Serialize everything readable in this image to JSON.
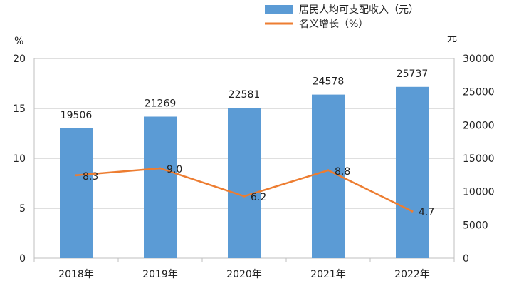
{
  "chart_data": {
    "type": "bar",
    "categories": [
      "2018年",
      "2019年",
      "2020年",
      "2021年",
      "2022年"
    ],
    "series": [
      {
        "name": "居民人均可支配收入（元）",
        "type": "bar",
        "axis": "right",
        "values": [
          19506,
          21269,
          22581,
          24578,
          25737
        ],
        "color": "#5b9bd5"
      },
      {
        "name": "名义增长（%）",
        "type": "line",
        "axis": "left",
        "values": [
          8.3,
          9.0,
          6.2,
          8.8,
          4.7
        ],
        "color": "#ed7d31"
      }
    ],
    "y_left": {
      "unit": "%",
      "ylim": [
        0,
        20
      ],
      "ticks": [
        "0",
        "5",
        "10",
        "15",
        "20"
      ]
    },
    "y_right": {
      "unit": "元",
      "ylim": [
        0,
        30000
      ],
      "ticks": [
        "0",
        "5000",
        "10000",
        "15000",
        "20000",
        "25000",
        "30000"
      ]
    },
    "grid": true,
    "legend_position": "top-right"
  }
}
